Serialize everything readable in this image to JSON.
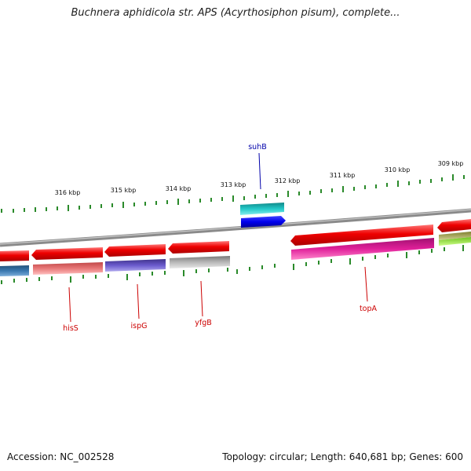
{
  "title": "Buchnera aphidicola str. APS (Acyrthosiphon pisum), complete...",
  "accession": "Accession: NC_002528",
  "summary": "Topology: circular; Length: 640,681 bp; Genes: 600",
  "ruler_labels": [
    "316 kbp",
    "315 kbp",
    "314 kbp",
    "313 kbp",
    "312 kbp",
    "311 kbp",
    "310 kbp",
    "309 kbp"
  ],
  "gene_labels": [
    {
      "name": "suhB",
      "color": "#0000aa"
    },
    {
      "name": "hisS",
      "color": "#cc0000"
    },
    {
      "name": "ispG",
      "color": "#cc0000"
    },
    {
      "name": "yfgB",
      "color": "#cc0000"
    },
    {
      "name": "topA",
      "color": "#cc0000"
    }
  ],
  "colors": {
    "backbone": "#8a8a8a",
    "tick": "#2a8a2a",
    "gene_red": "#ee0000",
    "suhB_top": "#22c8c8",
    "suhB_bottom": "#0000ee",
    "hisS_row2": "#3a78b0",
    "hisS_row2b": "#e87878",
    "ispG_row2": "#6a5acd",
    "yfgB_row2": "#b8b8b8",
    "topA_row2": "#e0209a",
    "right_row2a": "#b0b060",
    "right_row2b": "#a8f040"
  }
}
